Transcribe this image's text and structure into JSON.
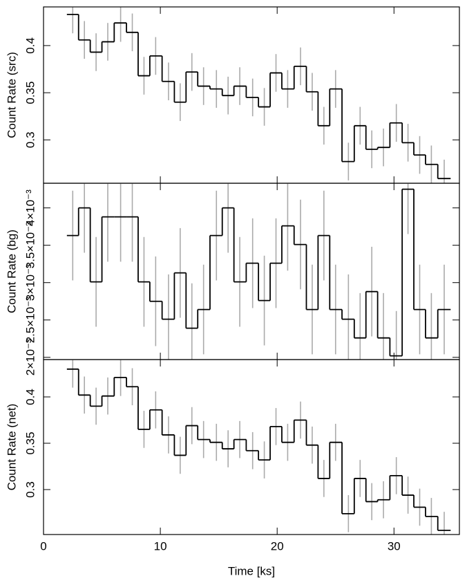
{
  "chart_data": [
    {
      "type": "step",
      "ylabel": "Count Rate (src)",
      "color": "#000000",
      "error_color": "#aaaaaa",
      "x": [
        2.5,
        3.5,
        4.5,
        5.5,
        6.6,
        7.6,
        8.6,
        9.6,
        10.7,
        11.7,
        12.7,
        13.7,
        14.8,
        15.8,
        16.8,
        17.9,
        18.9,
        19.9,
        20.9,
        22.0,
        23.0,
        24.0,
        25.0,
        26.1,
        27.1,
        28.1,
        29.1,
        30.2,
        31.2,
        32.2,
        33.2,
        34.3
      ],
      "values": [
        0.433,
        0.406,
        0.393,
        0.404,
        0.424,
        0.414,
        0.368,
        0.389,
        0.362,
        0.34,
        0.372,
        0.357,
        0.354,
        0.347,
        0.357,
        0.345,
        0.335,
        0.371,
        0.354,
        0.378,
        0.351,
        0.315,
        0.354,
        0.277,
        0.315,
        0.29,
        0.292,
        0.318,
        0.297,
        0.284,
        0.274,
        0.259
      ],
      "errors": [
        0.02,
        0.02,
        0.02,
        0.02,
        0.02,
        0.02,
        0.02,
        0.02,
        0.02,
        0.02,
        0.02,
        0.02,
        0.02,
        0.02,
        0.02,
        0.02,
        0.02,
        0.02,
        0.02,
        0.02,
        0.02,
        0.02,
        0.02,
        0.02,
        0.02,
        0.02,
        0.02,
        0.02,
        0.02,
        0.02,
        0.02,
        0.02
      ],
      "xlim": [
        0,
        35.6
      ],
      "ylim": [
        0.254,
        0.441
      ],
      "yticks": [
        {
          "value": 0.3,
          "label": "0.3"
        },
        0.35,
        {
          "value": 0.4,
          "label": "0.4"
        }
      ]
    },
    {
      "type": "step",
      "ylabel": "Count Rate (bg)",
      "color": "#000000",
      "error_color": "#aaaaaa",
      "x": [
        2.5,
        3.5,
        4.5,
        5.5,
        6.6,
        7.6,
        8.6,
        9.6,
        10.7,
        11.7,
        12.7,
        13.7,
        14.8,
        15.8,
        16.8,
        17.9,
        18.9,
        19.9,
        20.9,
        22.0,
        23.0,
        24.0,
        25.0,
        26.1,
        27.1,
        28.1,
        29.1,
        30.2,
        31.2,
        32.2,
        33.2,
        34.3
      ],
      "values": [
        0.00363,
        0.004,
        0.00301,
        0.00388,
        0.00388,
        0.00388,
        0.00301,
        0.00275,
        0.00251,
        0.00313,
        0.00239,
        0.00264,
        0.00363,
        0.004,
        0.00301,
        0.00326,
        0.00276,
        0.00326,
        0.00376,
        0.00351,
        0.00264,
        0.00363,
        0.00264,
        0.00251,
        0.00226,
        0.00288,
        0.00226,
        0.00202,
        0.00425,
        0.00264,
        0.00226,
        0.00264
      ],
      "errors": [
        0.0006,
        0.0006,
        0.0006,
        0.0006,
        0.0006,
        0.0006,
        0.0006,
        0.0006,
        0.0006,
        0.0006,
        0.0006,
        0.0006,
        0.0006,
        0.0006,
        0.0006,
        0.0006,
        0.0006,
        0.0006,
        0.0006,
        0.0006,
        0.0006,
        0.0006,
        0.0006,
        0.0006,
        0.0006,
        0.0006,
        0.0006,
        0.0006,
        0.0006,
        0.0006,
        0.0006,
        0.0006
      ],
      "xlim": [
        0,
        35.6
      ],
      "ylim": [
        0.00197,
        0.00433
      ],
      "yticks": [
        {
          "value": 0.002,
          "label": "2×10⁻³"
        },
        {
          "value": 0.0025,
          "label": "2.5×10⁻³"
        },
        {
          "value": 0.003,
          "label": "3×10⁻³"
        },
        {
          "value": 0.0035,
          "label": "3.5×10⁻³"
        },
        {
          "value": 0.004,
          "label": "4×10⁻³"
        }
      ]
    },
    {
      "type": "step",
      "ylabel": "Count Rate (net)",
      "xlabel": "Time [ks]",
      "color": "#000000",
      "error_color": "#aaaaaa",
      "x": [
        2.5,
        3.5,
        4.5,
        5.5,
        6.6,
        7.6,
        8.6,
        9.6,
        10.7,
        11.7,
        12.7,
        13.7,
        14.8,
        15.8,
        16.8,
        17.9,
        18.9,
        19.9,
        20.9,
        22.0,
        23.0,
        24.0,
        25.0,
        26.1,
        27.1,
        28.1,
        29.1,
        30.2,
        31.2,
        32.2,
        33.2,
        34.3
      ],
      "values": [
        0.43,
        0.402,
        0.39,
        0.401,
        0.421,
        0.411,
        0.365,
        0.386,
        0.359,
        0.337,
        0.369,
        0.354,
        0.351,
        0.344,
        0.354,
        0.342,
        0.332,
        0.368,
        0.351,
        0.375,
        0.348,
        0.312,
        0.351,
        0.274,
        0.312,
        0.287,
        0.289,
        0.315,
        0.294,
        0.281,
        0.271,
        0.256
      ],
      "errors": [
        0.02,
        0.02,
        0.02,
        0.02,
        0.02,
        0.02,
        0.02,
        0.02,
        0.02,
        0.02,
        0.02,
        0.02,
        0.02,
        0.02,
        0.02,
        0.02,
        0.02,
        0.02,
        0.02,
        0.02,
        0.02,
        0.02,
        0.02,
        0.02,
        0.02,
        0.02,
        0.02,
        0.02,
        0.02,
        0.02,
        0.02,
        0.02
      ],
      "xlim": [
        0,
        35.6
      ],
      "ylim": [
        0.2515,
        0.4403
      ],
      "yticks": [
        {
          "value": 0.3,
          "label": "0.3"
        },
        0.35,
        {
          "value": 0.4,
          "label": "0.4"
        }
      ],
      "xticks": [
        0,
        10,
        20,
        30
      ]
    }
  ]
}
